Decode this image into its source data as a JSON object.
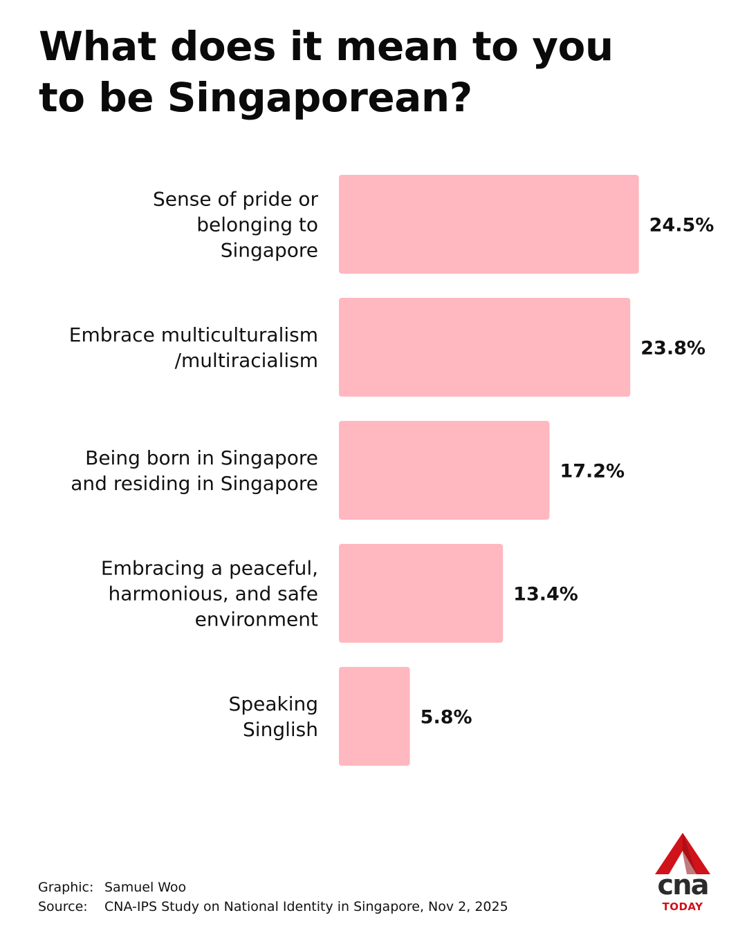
{
  "title": "What does it mean to you\nto be Singaporean?",
  "chart_data": {
    "type": "bar",
    "orientation": "horizontal",
    "categories": [
      [
        "Sense of pride or",
        "belonging to",
        "Singapore"
      ],
      [
        "Embrace multiculturalism",
        "/multiracialism"
      ],
      [
        "Being born in Singapore",
        "and residing in Singapore"
      ],
      [
        "Embracing a peaceful,",
        "harmonious, and safe",
        "environment"
      ],
      [
        "Speaking",
        "Singlish"
      ]
    ],
    "values": [
      24.5,
      23.8,
      17.2,
      13.4,
      5.8
    ],
    "value_labels": [
      "24.5%",
      "23.8%",
      "17.2%",
      "13.4%",
      "5.8%"
    ],
    "bar_color": "#ffb8bf",
    "grid": false,
    "legend": "none"
  },
  "credits": {
    "graphic_label": "Graphic:",
    "graphic_value": "Samuel Woo",
    "source_label": "Source:",
    "source_value": "CNA-IPS Study on National Identity in Singapore, Nov 2, 2025"
  },
  "logo": {
    "word": "cna",
    "sub": "TODAY",
    "colors": {
      "red": "#d0121b",
      "dark": "#2b2b2b"
    }
  }
}
